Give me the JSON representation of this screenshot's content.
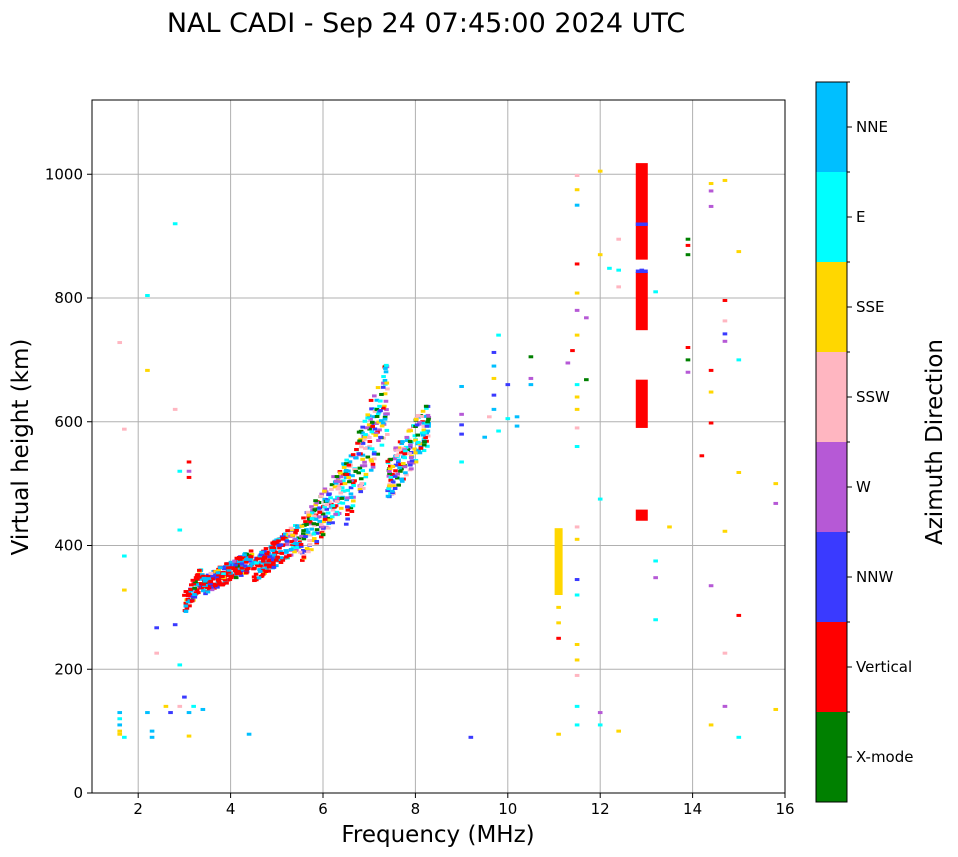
{
  "chart_data": {
    "type": "scatter",
    "title": "NAL CADI - Sep 24 07:45:00 2024 UTC",
    "xlabel": "Frequency (MHz)",
    "ylabel": "Virtual height (km)",
    "xlim": [
      1,
      16
    ],
    "ylim": [
      0,
      1120
    ],
    "xticks": [
      2,
      4,
      6,
      8,
      10,
      12,
      14,
      16
    ],
    "yticks": [
      0,
      200,
      400,
      600,
      800,
      1000
    ],
    "grid": true,
    "colorbar": {
      "label": "Azimuth Direction",
      "categories": [
        {
          "name": "X-mode",
          "color": "#008000"
        },
        {
          "name": "Vertical",
          "color": "#ff0000"
        },
        {
          "name": "NNW",
          "color": "#3a3aff"
        },
        {
          "name": "W",
          "color": "#b659d6"
        },
        {
          "name": "SSW",
          "color": "#ffb6c1"
        },
        {
          "name": "SSE",
          "color": "#ffd700"
        },
        {
          "name": "E",
          "color": "#00ffff"
        },
        {
          "name": "NNE",
          "color": "#00bfff"
        }
      ]
    },
    "echoes": [
      {
        "f": 1.6,
        "h": 100,
        "dir": "SSE"
      },
      {
        "f": 1.6,
        "h": 110,
        "dir": "NNE"
      },
      {
        "f": 1.6,
        "h": 120,
        "dir": "E"
      },
      {
        "f": 1.6,
        "h": 130,
        "dir": "NNE"
      },
      {
        "f": 1.6,
        "h": 95,
        "dir": "SSE"
      },
      {
        "f": 1.7,
        "h": 90,
        "dir": "E"
      },
      {
        "f": 1.6,
        "h": 728,
        "dir": "SSW"
      },
      {
        "f": 1.7,
        "h": 588,
        "dir": "SSW"
      },
      {
        "f": 1.7,
        "h": 383,
        "dir": "E"
      },
      {
        "f": 1.7,
        "h": 328,
        "dir": "SSE"
      },
      {
        "f": 2.2,
        "h": 804,
        "dir": "E"
      },
      {
        "f": 2.2,
        "h": 683,
        "dir": "SSE"
      },
      {
        "f": 2.3,
        "h": 90,
        "dir": "NNE"
      },
      {
        "f": 2.3,
        "h": 100,
        "dir": "NNE"
      },
      {
        "f": 2.2,
        "h": 130,
        "dir": "NNE"
      },
      {
        "f": 2.4,
        "h": 267,
        "dir": "NNW"
      },
      {
        "f": 2.4,
        "h": 226,
        "dir": "SSW"
      },
      {
        "f": 2.8,
        "h": 920,
        "dir": "E"
      },
      {
        "f": 2.8,
        "h": 620,
        "dir": "SSW"
      },
      {
        "f": 2.9,
        "h": 520,
        "dir": "E"
      },
      {
        "f": 2.9,
        "h": 425,
        "dir": "E"
      },
      {
        "f": 2.9,
        "h": 207,
        "dir": "E"
      },
      {
        "f": 2.8,
        "h": 272,
        "dir": "NNW"
      },
      {
        "f": 2.6,
        "h": 140,
        "dir": "SSE"
      },
      {
        "f": 2.7,
        "h": 130,
        "dir": "NNW"
      },
      {
        "f": 2.9,
        "h": 140,
        "dir": "SSW"
      },
      {
        "f": 3.0,
        "h": 155,
        "dir": "NNW"
      },
      {
        "f": 3.1,
        "h": 130,
        "dir": "NNE"
      },
      {
        "f": 3.2,
        "h": 140,
        "dir": "E"
      },
      {
        "f": 3.4,
        "h": 135,
        "dir": "NNE"
      },
      {
        "f": 3.1,
        "h": 92,
        "dir": "SSE"
      },
      {
        "f": 4.4,
        "h": 95,
        "dir": "NNE"
      },
      {
        "f": 3.1,
        "h": 535,
        "dir": "Vertical"
      },
      {
        "f": 3.1,
        "h": 520,
        "dir": "W"
      },
      {
        "f": 3.1,
        "h": 510,
        "dir": "Vertical"
      },
      {
        "f": 9.2,
        "h": 90,
        "dir": "NNW"
      },
      {
        "f": 11.1,
        "h": 95,
        "dir": "SSE"
      },
      {
        "f": 11.1,
        "h": 250,
        "dir": "Vertical"
      },
      {
        "f": 11.1,
        "h": 275,
        "dir": "SSE"
      },
      {
        "f": 11.1,
        "h": 300,
        "dir": "SSE"
      },
      {
        "f": 11.1,
        "h": 330,
        "dir": "SSE"
      },
      {
        "f": 11.1,
        "h": 360,
        "dir": "SSE"
      },
      {
        "f": 11.1,
        "h": 385,
        "dir": "SSE"
      },
      {
        "f": 11.1,
        "h": 410,
        "dir": "SSE"
      },
      {
        "f": 11.5,
        "h": 215,
        "dir": "SSE"
      },
      {
        "f": 11.5,
        "h": 240,
        "dir": "SSE"
      },
      {
        "f": 11.5,
        "h": 190,
        "dir": "SSW"
      },
      {
        "f": 11.5,
        "h": 345,
        "dir": "NNW"
      },
      {
        "f": 11.5,
        "h": 320,
        "dir": "E"
      },
      {
        "f": 11.5,
        "h": 410,
        "dir": "SSE"
      },
      {
        "f": 11.5,
        "h": 430,
        "dir": "SSW"
      },
      {
        "f": 11.5,
        "h": 560,
        "dir": "E"
      },
      {
        "f": 11.5,
        "h": 590,
        "dir": "SSW"
      },
      {
        "f": 11.5,
        "h": 620,
        "dir": "SSE"
      },
      {
        "f": 11.5,
        "h": 640,
        "dir": "SSE"
      },
      {
        "f": 11.5,
        "h": 660,
        "dir": "E"
      },
      {
        "f": 11.4,
        "h": 715,
        "dir": "Vertical"
      },
      {
        "f": 11.5,
        "h": 740,
        "dir": "SSE"
      },
      {
        "f": 11.5,
        "h": 780,
        "dir": "W"
      },
      {
        "f": 11.5,
        "h": 855,
        "dir": "Vertical"
      },
      {
        "f": 11.5,
        "h": 950,
        "dir": "NNE"
      },
      {
        "f": 11.5,
        "h": 975,
        "dir": "SSE"
      },
      {
        "f": 11.5,
        "h": 998,
        "dir": "SSW"
      },
      {
        "f": 11.5,
        "h": 110,
        "dir": "E"
      },
      {
        "f": 11.5,
        "h": 140,
        "dir": "E"
      },
      {
        "f": 12.0,
        "h": 110,
        "dir": "E"
      },
      {
        "f": 12.0,
        "h": 130,
        "dir": "W"
      },
      {
        "f": 12.0,
        "h": 475,
        "dir": "E"
      },
      {
        "f": 12.0,
        "h": 870,
        "dir": "SSE"
      },
      {
        "f": 12.0,
        "h": 1005,
        "dir": "SSE"
      },
      {
        "f": 12.4,
        "h": 100,
        "dir": "SSE"
      },
      {
        "f": 12.4,
        "h": 818,
        "dir": "SSW"
      },
      {
        "f": 12.4,
        "h": 845,
        "dir": "E"
      },
      {
        "f": 12.4,
        "h": 895,
        "dir": "SSW"
      },
      {
        "f": 12.9,
        "h": 445,
        "dir": "Vertical"
      },
      {
        "f": 12.9,
        "h": 455,
        "dir": "Vertical"
      },
      {
        "f": 12.9,
        "h": 600,
        "dir": "Vertical"
      },
      {
        "f": 12.9,
        "h": 650,
        "dir": "Vertical"
      },
      {
        "f": 12.9,
        "h": 770,
        "dir": "Vertical"
      },
      {
        "f": 12.9,
        "h": 820,
        "dir": "Vertical"
      },
      {
        "f": 12.9,
        "h": 845,
        "dir": "NNW"
      },
      {
        "f": 12.9,
        "h": 880,
        "dir": "Vertical"
      },
      {
        "f": 12.9,
        "h": 920,
        "dir": "NNW"
      },
      {
        "f": 12.9,
        "h": 960,
        "dir": "Vertical"
      },
      {
        "f": 12.9,
        "h": 1010,
        "dir": "Vertical"
      },
      {
        "f": 13.2,
        "h": 280,
        "dir": "E"
      },
      {
        "f": 13.2,
        "h": 348,
        "dir": "W"
      },
      {
        "f": 13.2,
        "h": 375,
        "dir": "E"
      },
      {
        "f": 13.2,
        "h": 810,
        "dir": "E"
      },
      {
        "f": 13.5,
        "h": 430,
        "dir": "SSE"
      },
      {
        "f": 13.9,
        "h": 680,
        "dir": "W"
      },
      {
        "f": 13.9,
        "h": 700,
        "dir": "X-mode"
      },
      {
        "f": 13.9,
        "h": 720,
        "dir": "Vertical"
      },
      {
        "f": 13.9,
        "h": 870,
        "dir": "X-mode"
      },
      {
        "f": 13.9,
        "h": 885,
        "dir": "Vertical"
      },
      {
        "f": 13.9,
        "h": 895,
        "dir": "X-mode"
      },
      {
        "f": 14.2,
        "h": 545,
        "dir": "Vertical"
      },
      {
        "f": 14.4,
        "h": 110,
        "dir": "SSE"
      },
      {
        "f": 14.4,
        "h": 335,
        "dir": "W"
      },
      {
        "f": 14.4,
        "h": 598,
        "dir": "Vertical"
      },
      {
        "f": 14.4,
        "h": 648,
        "dir": "SSE"
      },
      {
        "f": 14.4,
        "h": 683,
        "dir": "Vertical"
      },
      {
        "f": 14.4,
        "h": 948,
        "dir": "W"
      },
      {
        "f": 14.4,
        "h": 973,
        "dir": "W"
      },
      {
        "f": 14.4,
        "h": 985,
        "dir": "SSE"
      },
      {
        "f": 14.7,
        "h": 140,
        "dir": "W"
      },
      {
        "f": 14.7,
        "h": 226,
        "dir": "SSW"
      },
      {
        "f": 14.7,
        "h": 423,
        "dir": "SSE"
      },
      {
        "f": 14.7,
        "h": 730,
        "dir": "W"
      },
      {
        "f": 14.7,
        "h": 742,
        "dir": "NNW"
      },
      {
        "f": 14.7,
        "h": 763,
        "dir": "SSW"
      },
      {
        "f": 14.7,
        "h": 796,
        "dir": "Vertical"
      },
      {
        "f": 14.7,
        "h": 990,
        "dir": "SSE"
      },
      {
        "f": 15.0,
        "h": 90,
        "dir": "E"
      },
      {
        "f": 15.0,
        "h": 287,
        "dir": "Vertical"
      },
      {
        "f": 15.0,
        "h": 518,
        "dir": "SSE"
      },
      {
        "f": 15.0,
        "h": 700,
        "dir": "E"
      },
      {
        "f": 15.0,
        "h": 875,
        "dir": "SSE"
      },
      {
        "f": 15.8,
        "h": 135,
        "dir": "SSE"
      },
      {
        "f": 15.8,
        "h": 468,
        "dir": "W"
      },
      {
        "f": 15.8,
        "h": 500,
        "dir": "SSE"
      },
      {
        "f": 9.0,
        "h": 535,
        "dir": "E"
      },
      {
        "f": 9.0,
        "h": 580,
        "dir": "NNW"
      },
      {
        "f": 9.0,
        "h": 595,
        "dir": "NNW"
      },
      {
        "f": 9.0,
        "h": 612,
        "dir": "W"
      },
      {
        "f": 9.0,
        "h": 657,
        "dir": "NNE"
      },
      {
        "f": 9.5,
        "h": 575,
        "dir": "NNE"
      },
      {
        "f": 9.6,
        "h": 608,
        "dir": "SSW"
      },
      {
        "f": 9.7,
        "h": 620,
        "dir": "NNE"
      },
      {
        "f": 9.7,
        "h": 643,
        "dir": "NNW"
      },
      {
        "f": 9.7,
        "h": 670,
        "dir": "SSE"
      },
      {
        "f": 9.7,
        "h": 690,
        "dir": "NNE"
      },
      {
        "f": 9.7,
        "h": 712,
        "dir": "NNW"
      },
      {
        "f": 9.8,
        "h": 740,
        "dir": "E"
      },
      {
        "f": 9.8,
        "h": 585,
        "dir": "E"
      },
      {
        "f": 10.0,
        "h": 605,
        "dir": "E"
      },
      {
        "f": 10.2,
        "h": 593,
        "dir": "NNE"
      },
      {
        "f": 10.2,
        "h": 608,
        "dir": "NNE"
      },
      {
        "f": 10.5,
        "h": 660,
        "dir": "NNE"
      },
      {
        "f": 10.5,
        "h": 670,
        "dir": "W"
      },
      {
        "f": 10.5,
        "h": 705,
        "dir": "X-mode"
      },
      {
        "f": 10.0,
        "h": 660,
        "dir": "NNW"
      },
      {
        "f": 11.3,
        "h": 695,
        "dir": "W"
      },
      {
        "f": 11.7,
        "h": 668,
        "dir": "X-mode"
      },
      {
        "f": 11.7,
        "h": 768,
        "dir": "W"
      },
      {
        "f": 11.5,
        "h": 808,
        "dir": "SSE"
      },
      {
        "f": 12.2,
        "h": 848,
        "dir": "E"
      }
    ],
    "cloud": {
      "note": "dense band of echoes from ~3 to ~8.3 MHz rising from ~300 km to ~640 km",
      "segments": [
        {
          "f": [
            3.0,
            3.4
          ],
          "h": [
            290,
            370
          ]
        },
        {
          "f": [
            3.4,
            4.5
          ],
          "h": [
            320,
            395
          ]
        },
        {
          "f": [
            4.5,
            5.5
          ],
          "h": [
            340,
            440
          ]
        },
        {
          "f": [
            5.5,
            6.5
          ],
          "h": [
            370,
            540
          ]
        },
        {
          "f": [
            6.5,
            7.4
          ],
          "h": [
            430,
            700
          ]
        },
        {
          "f": [
            7.4,
            8.3
          ],
          "h": [
            470,
            640
          ]
        }
      ]
    }
  }
}
